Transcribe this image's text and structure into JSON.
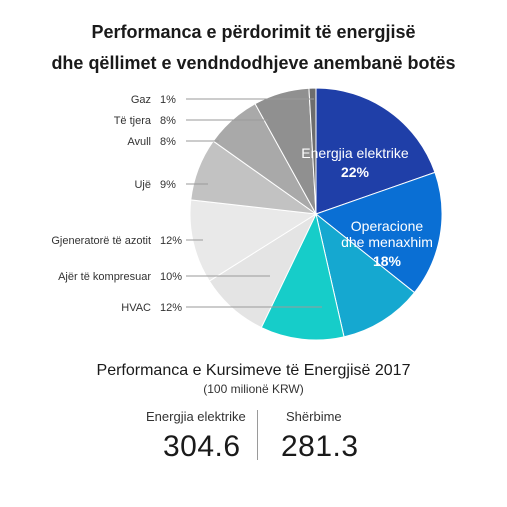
{
  "title": {
    "line1": "Performanca e përdorimit të energjisë",
    "line2": "dhe qëllimet e vendndodhjeve anembanë botës"
  },
  "chart_data": {
    "type": "pie",
    "unit": "%",
    "start": "top",
    "direction": "clockwise",
    "slices": [
      {
        "label": "Energjia elektrike",
        "value": 22,
        "color": "#1f3fa8",
        "label_position": "inside"
      },
      {
        "label": "Operacione dhe menaxhim",
        "label_lines": [
          "Operacione",
          "dhe menaxhim"
        ],
        "value": 18,
        "color": "#0a6fd4",
        "label_position": "inside"
      },
      {
        "label": "",
        "value": 12,
        "color": "#15a8d0",
        "label_position": "none"
      },
      {
        "label": "HVAC",
        "value": 12,
        "color": "#16cdc9",
        "label_position": "outside"
      },
      {
        "label": "Ajër të kompresuar",
        "value": 10,
        "color": "#e4e4e4",
        "label_position": "outside"
      },
      {
        "label": "Gjeneratorë të azotit",
        "value": 12,
        "color": "#e9e9e9",
        "label_position": "outside"
      },
      {
        "label": "Ujë",
        "value": 9,
        "color": "#c2c2c2",
        "label_position": "outside"
      },
      {
        "label": "Avull",
        "value": 8,
        "color": "#a9a9a9",
        "label_position": "outside"
      },
      {
        "label": "Të tjera",
        "value": 8,
        "color": "#909090",
        "label_position": "outside"
      },
      {
        "label": "Gaz",
        "value": 1,
        "color": "#6d6d6d",
        "label_position": "outside"
      }
    ]
  },
  "summary": {
    "title": "Performanca e Kursimeve të Energjisë 2017",
    "subtitle": "(100 milionë KRW)",
    "items": [
      {
        "label": "Energjia elektrike",
        "value": "304.6"
      },
      {
        "label": "Shërbime",
        "value": "281.3"
      }
    ]
  }
}
